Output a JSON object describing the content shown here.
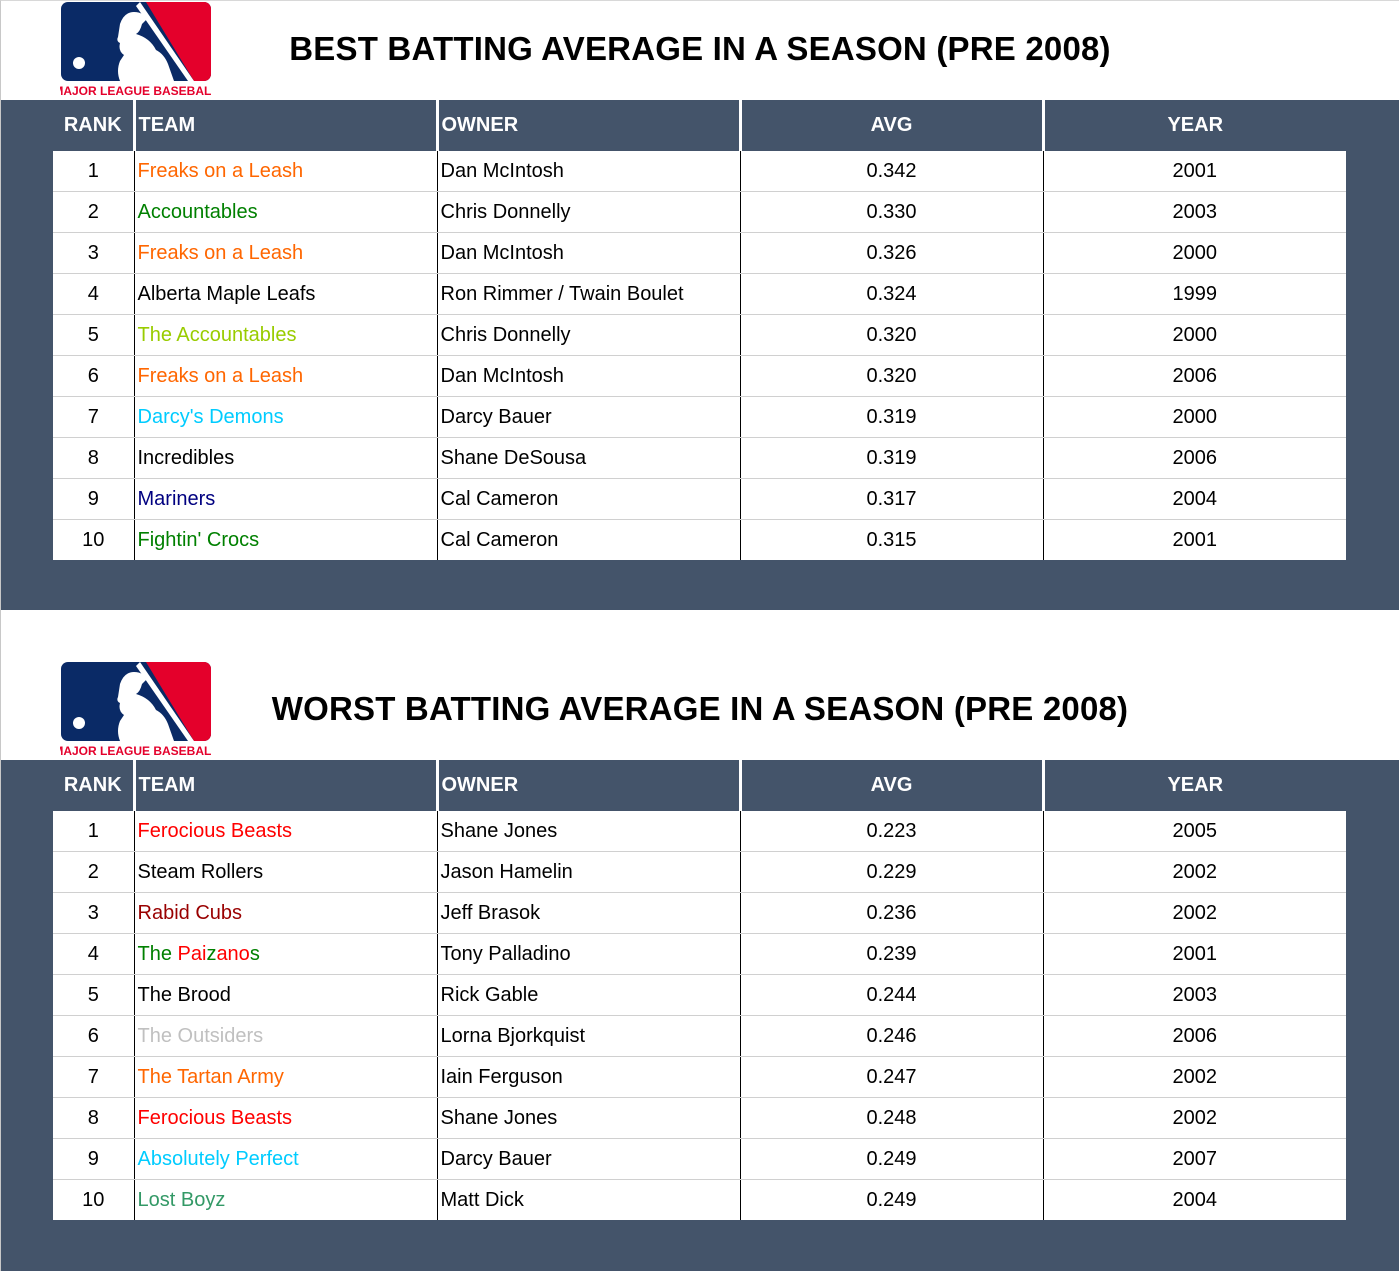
{
  "logo_text": "MAJOR LEAGUE BASEBALL",
  "colors": {
    "header_bg": "#44546a",
    "logo_blue": "#0a2a66",
    "logo_red": "#e4002b"
  },
  "columns": [
    "RANK",
    "TEAM",
    "OWNER",
    "AVG",
    "YEAR"
  ],
  "best": {
    "title": "BEST BATTING AVERAGE IN A SEASON (PRE 2008)",
    "rows": [
      {
        "rank": "1",
        "team": [
          {
            "t": "Freaks on a Leash",
            "c": "#ff6600"
          }
        ],
        "owner": "Dan McIntosh",
        "avg": "0.342",
        "year": "2001"
      },
      {
        "rank": "2",
        "team": [
          {
            "t": "Accountables",
            "c": "#008000"
          }
        ],
        "owner": "Chris Donnelly",
        "avg": "0.330",
        "year": "2003"
      },
      {
        "rank": "3",
        "team": [
          {
            "t": "Freaks on a Leash",
            "c": "#ff6600"
          }
        ],
        "owner": "Dan McIntosh",
        "avg": "0.326",
        "year": "2000"
      },
      {
        "rank": "4",
        "team": [
          {
            "t": "Alberta Maple Leafs",
            "c": "#000000"
          }
        ],
        "owner": "Ron Rimmer / Twain Boulet",
        "avg": "0.324",
        "year": "1999"
      },
      {
        "rank": "5",
        "team": [
          {
            "t": "The Accountables",
            "c": "#99cc00"
          }
        ],
        "owner": "Chris Donnelly",
        "avg": "0.320",
        "year": "2000"
      },
      {
        "rank": "6",
        "team": [
          {
            "t": "Freaks on a Leash",
            "c": "#ff6600"
          }
        ],
        "owner": "Dan McIntosh",
        "avg": "0.320",
        "year": "2006"
      },
      {
        "rank": "7",
        "team": [
          {
            "t": "Darcy's Demons",
            "c": "#00ccff"
          }
        ],
        "owner": "Darcy Bauer",
        "avg": "0.319",
        "year": "2000"
      },
      {
        "rank": "8",
        "team": [
          {
            "t": "Incredibles",
            "c": "#000000"
          }
        ],
        "owner": "Shane DeSousa",
        "avg": "0.319",
        "year": "2006"
      },
      {
        "rank": "9",
        "team": [
          {
            "t": "Mariners",
            "c": "#000080"
          }
        ],
        "owner": "Cal Cameron",
        "avg": "0.317",
        "year": "2004"
      },
      {
        "rank": "10",
        "team": [
          {
            "t": "Fightin' Crocs",
            "c": "#008000"
          }
        ],
        "owner": "Cal Cameron",
        "avg": "0.315",
        "year": "2001"
      }
    ]
  },
  "worst": {
    "title": "WORST BATTING AVERAGE IN A SEASON (PRE 2008)",
    "rows": [
      {
        "rank": "1",
        "team": [
          {
            "t": "Ferocious Beasts",
            "c": "#ff0000"
          }
        ],
        "owner": "Shane Jones",
        "avg": "0.223",
        "year": "2005"
      },
      {
        "rank": "2",
        "team": [
          {
            "t": "Steam Rollers",
            "c": "#000000"
          }
        ],
        "owner": "Jason Hamelin",
        "avg": "0.229",
        "year": "2002"
      },
      {
        "rank": "3",
        "team": [
          {
            "t": "Rabid Cubs",
            "c": "#990000"
          }
        ],
        "owner": "Jeff Brasok",
        "avg": "0.236",
        "year": "2002"
      },
      {
        "rank": "4",
        "team": [
          {
            "t": "The ",
            "c": "#008000"
          },
          {
            "t": "Pai",
            "c": "#ff0000"
          },
          {
            "t": "z",
            "c": "#008000"
          },
          {
            "t": "ano",
            "c": "#ff0000"
          },
          {
            "t": "s",
            "c": "#008000"
          }
        ],
        "owner": "Tony Palladino",
        "avg": "0.239",
        "year": "2001"
      },
      {
        "rank": "5",
        "team": [
          {
            "t": "The Brood",
            "c": "#000000"
          }
        ],
        "owner": "Rick Gable",
        "avg": "0.244",
        "year": "2003"
      },
      {
        "rank": "6",
        "team": [
          {
            "t": "The Outsiders",
            "c": "#c0c0c0"
          }
        ],
        "owner": "Lorna Bjorkquist",
        "avg": "0.246",
        "year": "2006"
      },
      {
        "rank": "7",
        "team": [
          {
            "t": "The Tartan Army",
            "c": "#ff6600"
          }
        ],
        "owner": "Iain Ferguson",
        "avg": "0.247",
        "year": "2002"
      },
      {
        "rank": "8",
        "team": [
          {
            "t": "Ferocious Beasts",
            "c": "#ff0000"
          }
        ],
        "owner": "Shane Jones",
        "avg": "0.248",
        "year": "2002"
      },
      {
        "rank": "9",
        "team": [
          {
            "t": "Absolutely Perfect",
            "c": "#00ccff"
          }
        ],
        "owner": "Darcy Bauer",
        "avg": "0.249",
        "year": "2007"
      },
      {
        "rank": "10",
        "team": [
          {
            "t": "Lost Boyz",
            "c": "#339966"
          }
        ],
        "owner": "Matt Dick",
        "avg": "0.249",
        "year": "2004"
      }
    ]
  }
}
